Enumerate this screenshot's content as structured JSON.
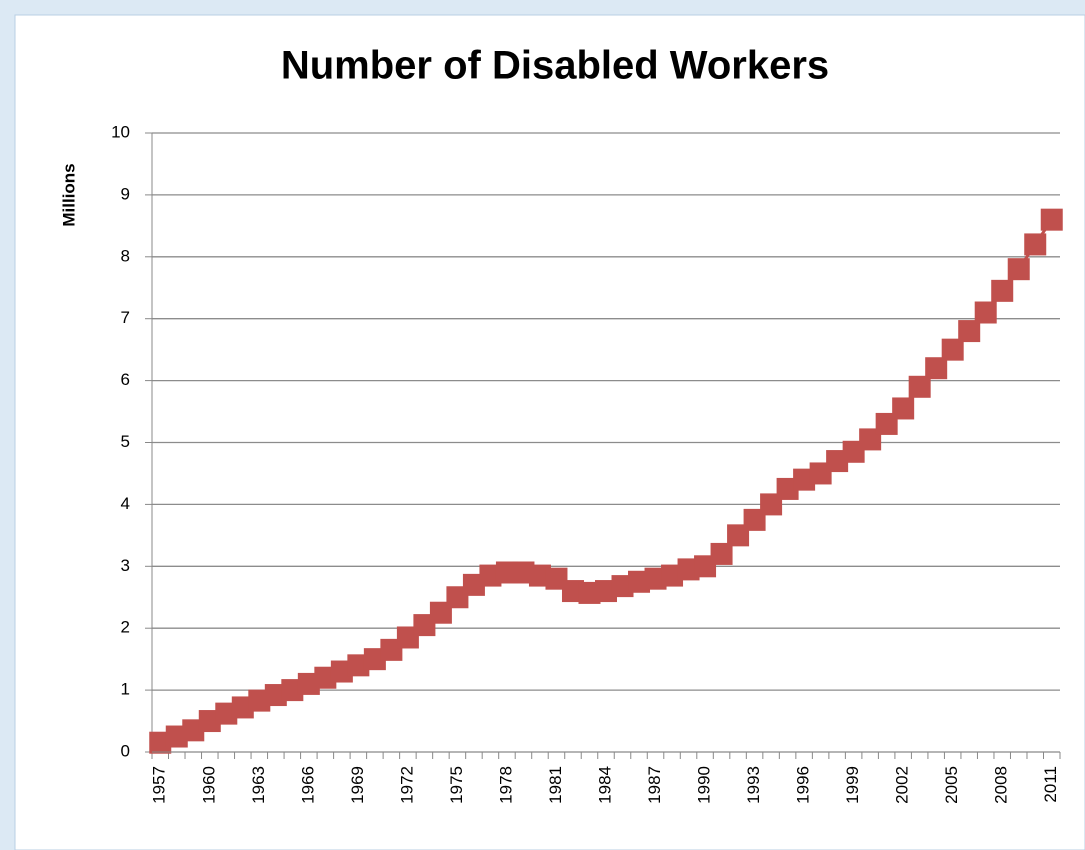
{
  "chart_data": {
    "type": "line",
    "title": "Number of Disabled Workers",
    "y_label": "Millions",
    "categories": [
      "1957",
      null,
      null,
      "1960",
      null,
      null,
      "1963",
      null,
      null,
      "1966",
      null,
      null,
      "1969",
      null,
      null,
      "1972",
      null,
      null,
      "1975",
      null,
      null,
      "1978",
      null,
      null,
      "1981",
      null,
      null,
      "1984",
      null,
      null,
      "1987",
      null,
      null,
      "1990",
      null,
      null,
      "1993",
      null,
      null,
      "1996",
      null,
      null,
      "1999",
      null,
      null,
      "2002",
      null,
      null,
      "2005",
      null,
      null,
      "2008",
      null,
      null,
      "2011"
    ],
    "values": [
      0.15,
      0.25,
      0.35,
      0.5,
      0.62,
      0.72,
      0.83,
      0.92,
      1.0,
      1.1,
      1.2,
      1.3,
      1.4,
      1.5,
      1.65,
      1.85,
      2.05,
      2.25,
      2.5,
      2.7,
      2.85,
      2.9,
      2.9,
      2.85,
      2.8,
      2.6,
      2.57,
      2.6,
      2.68,
      2.75,
      2.8,
      2.85,
      2.95,
      3.0,
      3.2,
      3.5,
      3.75,
      4.0,
      4.25,
      4.4,
      4.5,
      4.7,
      4.85,
      5.05,
      5.3,
      5.55,
      5.9,
      6.2,
      6.5,
      6.8,
      7.1,
      7.45,
      7.8,
      8.2,
      8.6
    ],
    "color": "#c0504d",
    "marker": "square",
    "ylim": [
      0,
      10
    ],
    "yticks": [
      0,
      1,
      2,
      3,
      4,
      5,
      6,
      7,
      8,
      9,
      10
    ],
    "grid": true
  }
}
